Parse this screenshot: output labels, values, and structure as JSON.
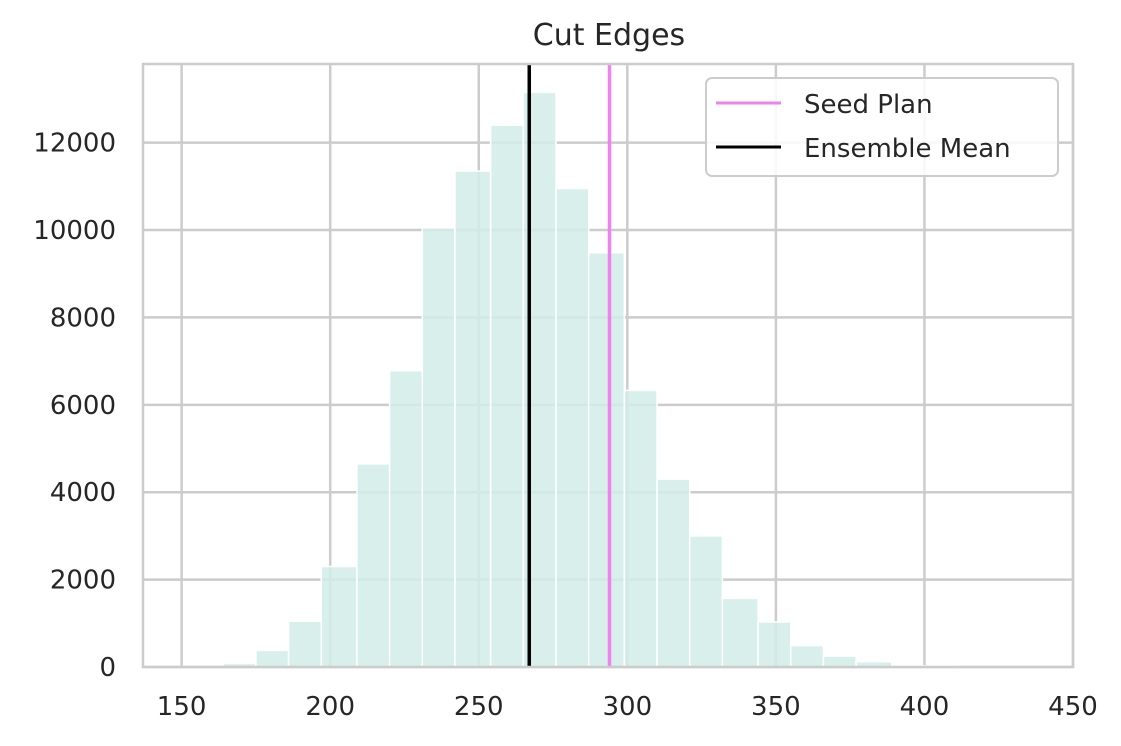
{
  "chart_data": {
    "type": "bar",
    "title": "Cut Edges",
    "xlabel": "",
    "ylabel": "",
    "xlim": [
      137,
      450
    ],
    "ylim": [
      0,
      13800
    ],
    "x_ticks": [
      150,
      200,
      250,
      300,
      350,
      400,
      450
    ],
    "y_ticks": [
      0,
      2000,
      4000,
      6000,
      8000,
      10000,
      12000
    ],
    "grid": true,
    "legend_position": "top-right",
    "bar_color": "#d1ece7",
    "bins": [
      {
        "x_start": 164,
        "x_end": 175,
        "value": 80
      },
      {
        "x_start": 175,
        "x_end": 186,
        "value": 380
      },
      {
        "x_start": 186,
        "x_end": 197,
        "value": 1050
      },
      {
        "x_start": 197,
        "x_end": 209,
        "value": 2300
      },
      {
        "x_start": 209,
        "x_end": 220,
        "value": 4650
      },
      {
        "x_start": 220,
        "x_end": 231,
        "value": 6780
      },
      {
        "x_start": 231,
        "x_end": 242,
        "value": 10050
      },
      {
        "x_start": 242,
        "x_end": 254,
        "value": 11350
      },
      {
        "x_start": 254,
        "x_end": 265,
        "value": 12400
      },
      {
        "x_start": 265,
        "x_end": 276,
        "value": 13150
      },
      {
        "x_start": 276,
        "x_end": 287,
        "value": 10950
      },
      {
        "x_start": 287,
        "x_end": 299,
        "value": 9480
      },
      {
        "x_start": 299,
        "x_end": 310,
        "value": 6330
      },
      {
        "x_start": 310,
        "x_end": 321,
        "value": 4300
      },
      {
        "x_start": 321,
        "x_end": 332,
        "value": 3000
      },
      {
        "x_start": 332,
        "x_end": 344,
        "value": 1570
      },
      {
        "x_start": 344,
        "x_end": 355,
        "value": 1030
      },
      {
        "x_start": 355,
        "x_end": 366,
        "value": 490
      },
      {
        "x_start": 366,
        "x_end": 377,
        "value": 250
      },
      {
        "x_start": 377,
        "x_end": 389,
        "value": 120
      },
      {
        "x_start": 389,
        "x_end": 400,
        "value": 30
      },
      {
        "x_start": 400,
        "x_end": 411,
        "value": 15
      },
      {
        "x_start": 411,
        "x_end": 422,
        "value": 8
      },
      {
        "x_start": 422,
        "x_end": 434,
        "value": 4
      }
    ],
    "reference_lines": [
      {
        "name": "Seed Plan",
        "x": 294,
        "color": "#ee82ee"
      },
      {
        "name": "Ensemble Mean",
        "x": 267,
        "color": "#000000"
      }
    ]
  }
}
